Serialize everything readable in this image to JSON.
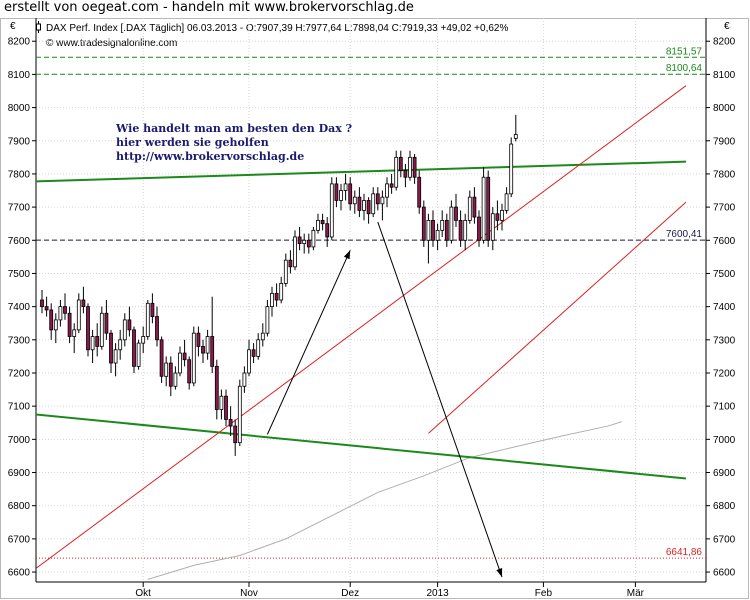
{
  "page_title": "erstellt von oegeat.com - handeln mit www.brokervorschlag.de",
  "header": {
    "info": "DAX Perf. Index [.DAX  Täglich] 06.03.2013 - O:7907,39 H:7977,64 L:7898,04 C:7919,33 +49,02 +0,62%",
    "copyright": "© www.tradesignalonline.com",
    "currency_left": "€",
    "currency_right": "€"
  },
  "annotation": {
    "lines": [
      "Wie handelt man am besten  den Dax ?",
      "hier werden sie geholfen",
      "http://www.brokervorschlag.de"
    ]
  },
  "colors": {
    "bull": "#ffffff",
    "bear": "#8b1a4a",
    "wick": "#000000",
    "green": "#1a8a1a",
    "red": "#dd2222",
    "ma": "#b0b0b0",
    "note": "#1a1a6e"
  },
  "chart_data": {
    "type": "candlestick",
    "instrument": "DAX Perf. Index",
    "ylim": [
      6570,
      8270
    ],
    "yticks": [
      6600,
      6700,
      6800,
      6900,
      7000,
      7100,
      7200,
      7300,
      7400,
      7500,
      7600,
      7700,
      7800,
      7900,
      8000,
      8100,
      8200
    ],
    "x_month_labels": [
      {
        "label": "Okt",
        "index": 22
      },
      {
        "label": "Nov",
        "index": 45
      },
      {
        "label": "Dez",
        "index": 67
      },
      {
        "label": "2013",
        "index": 86
      },
      {
        "label": "Feb",
        "index": 109
      },
      {
        "label": "Mär",
        "index": 129
      }
    ],
    "levels": [
      {
        "value": 8151.57,
        "label": "8151,57",
        "color": "#1a8a1a",
        "style": "dashed"
      },
      {
        "value": 8100.64,
        "label": "8100,64",
        "color": "#1a8a1a",
        "style": "dashed"
      },
      {
        "value": 7600.41,
        "label": "7600,41",
        "color": "#1a1a4a",
        "style": "dashed"
      },
      {
        "value": 6641.86,
        "label": "6641,86",
        "color": "#dd2222",
        "style": "dotted"
      }
    ],
    "trendlines": [
      {
        "color": "#1a8a1a",
        "width": 2,
        "from": [
          -5,
          7776
        ],
        "to": [
          140,
          7837
        ]
      },
      {
        "color": "#1a8a1a",
        "width": 2,
        "from": [
          -5,
          7080
        ],
        "to": [
          140,
          6882
        ]
      },
      {
        "color": "#dd2222",
        "width": 1,
        "from": [
          -5,
          6573
        ],
        "to": [
          140,
          8066
        ]
      },
      {
        "color": "#dd2222",
        "width": 1,
        "from": [
          84,
          7018
        ],
        "to": [
          140,
          7715
        ]
      }
    ],
    "arrows": [
      {
        "from": [
          49,
          7015
        ],
        "to": [
          67,
          7570
        ]
      },
      {
        "from": [
          73,
          7655
        ],
        "to": [
          100,
          6585
        ]
      }
    ],
    "moving_average": [
      [
        23,
        6578
      ],
      [
        33,
        6620
      ],
      [
        43,
        6650
      ],
      [
        53,
        6700
      ],
      [
        63,
        6770
      ],
      [
        73,
        6840
      ],
      [
        83,
        6890
      ],
      [
        93,
        6945
      ],
      [
        103,
        6978
      ],
      [
        113,
        7010
      ],
      [
        123,
        7040
      ],
      [
        126,
        7053
      ]
    ],
    "candles": [
      [
        7420,
        7450,
        7380,
        7400
      ],
      [
        7400,
        7430,
        7370,
        7390
      ],
      [
        7390,
        7410,
        7300,
        7330
      ],
      [
        7330,
        7380,
        7290,
        7360
      ],
      [
        7360,
        7420,
        7340,
        7400
      ],
      [
        7400,
        7440,
        7360,
        7380
      ],
      [
        7380,
        7400,
        7290,
        7310
      ],
      [
        7310,
        7350,
        7260,
        7330
      ],
      [
        7330,
        7440,
        7320,
        7420
      ],
      [
        7420,
        7460,
        7380,
        7400
      ],
      [
        7400,
        7410,
        7250,
        7270
      ],
      [
        7270,
        7330,
        7230,
        7310
      ],
      [
        7310,
        7350,
        7250,
        7280
      ],
      [
        7280,
        7400,
        7270,
        7380
      ],
      [
        7380,
        7420,
        7300,
        7320
      ],
      [
        7320,
        7330,
        7200,
        7230
      ],
      [
        7230,
        7290,
        7190,
        7270
      ],
      [
        7270,
        7330,
        7240,
        7300
      ],
      [
        7300,
        7380,
        7280,
        7360
      ],
      [
        7360,
        7400,
        7310,
        7330
      ],
      [
        7330,
        7340,
        7200,
        7220
      ],
      [
        7220,
        7300,
        7210,
        7290
      ],
      [
        7290,
        7340,
        7260,
        7310
      ],
      [
        7310,
        7420,
        7300,
        7410
      ],
      [
        7410,
        7440,
        7350,
        7370
      ],
      [
        7370,
        7400,
        7280,
        7300
      ],
      [
        7300,
        7310,
        7170,
        7190
      ],
      [
        7190,
        7250,
        7160,
        7230
      ],
      [
        7230,
        7250,
        7130,
        7160
      ],
      [
        7160,
        7220,
        7150,
        7200
      ],
      [
        7200,
        7280,
        7190,
        7260
      ],
      [
        7260,
        7300,
        7220,
        7240
      ],
      [
        7240,
        7250,
        7150,
        7170
      ],
      [
        7170,
        7340,
        7160,
        7320
      ],
      [
        7320,
        7340,
        7250,
        7280
      ],
      [
        7280,
        7300,
        7230,
        7260
      ],
      [
        7260,
        7330,
        7240,
        7310
      ],
      [
        7310,
        7430,
        7200,
        7220
      ],
      [
        7220,
        7240,
        7060,
        7090
      ],
      [
        7090,
        7150,
        7060,
        7130
      ],
      [
        7130,
        7150,
        7040,
        7060
      ],
      [
        7060,
        7100,
        7010,
        7040
      ],
      [
        7040,
        7060,
        6950,
        6990
      ],
      [
        6990,
        7180,
        6980,
        7160
      ],
      [
        7160,
        7220,
        7140,
        7200
      ],
      [
        7200,
        7300,
        7190,
        7270
      ],
      [
        7270,
        7290,
        7230,
        7250
      ],
      [
        7250,
        7320,
        7240,
        7300
      ],
      [
        7300,
        7350,
        7280,
        7320
      ],
      [
        7320,
        7420,
        7310,
        7400
      ],
      [
        7400,
        7460,
        7370,
        7440
      ],
      [
        7440,
        7470,
        7400,
        7420
      ],
      [
        7420,
        7490,
        7410,
        7470
      ],
      [
        7470,
        7560,
        7460,
        7540
      ],
      [
        7540,
        7570,
        7500,
        7520
      ],
      [
        7520,
        7630,
        7510,
        7610
      ],
      [
        7610,
        7640,
        7570,
        7590
      ],
      [
        7590,
        7620,
        7560,
        7600
      ],
      [
        7600,
        7620,
        7560,
        7580
      ],
      [
        7580,
        7640,
        7570,
        7630
      ],
      [
        7630,
        7680,
        7620,
        7660
      ],
      [
        7660,
        7680,
        7630,
        7650
      ],
      [
        7650,
        7670,
        7580,
        7610
      ],
      [
        7610,
        7790,
        7600,
        7770
      ],
      [
        7770,
        7790,
        7700,
        7720
      ],
      [
        7720,
        7770,
        7690,
        7750
      ],
      [
        7750,
        7800,
        7720,
        7770
      ],
      [
        7770,
        7790,
        7690,
        7710
      ],
      [
        7710,
        7750,
        7680,
        7730
      ],
      [
        7730,
        7760,
        7670,
        7690
      ],
      [
        7690,
        7740,
        7660,
        7720
      ],
      [
        7720,
        7730,
        7650,
        7680
      ],
      [
        7680,
        7760,
        7670,
        7740
      ],
      [
        7740,
        7760,
        7690,
        7710
      ],
      [
        7710,
        7750,
        7660,
        7730
      ],
      [
        7730,
        7790,
        7700,
        7770
      ],
      [
        7770,
        7800,
        7740,
        7760
      ],
      [
        7760,
        7870,
        7750,
        7850
      ],
      [
        7850,
        7870,
        7790,
        7810
      ],
      [
        7810,
        7830,
        7760,
        7790
      ],
      [
        7790,
        7870,
        7780,
        7850
      ],
      [
        7850,
        7860,
        7770,
        7790
      ],
      [
        7790,
        7810,
        7680,
        7700
      ],
      [
        7700,
        7720,
        7580,
        7600
      ],
      [
        7600,
        7680,
        7530,
        7660
      ],
      [
        7660,
        7690,
        7580,
        7600
      ],
      [
        7600,
        7650,
        7570,
        7630
      ],
      [
        7630,
        7690,
        7610,
        7660
      ],
      [
        7660,
        7680,
        7580,
        7600
      ],
      [
        7600,
        7720,
        7590,
        7700
      ],
      [
        7700,
        7740,
        7640,
        7660
      ],
      [
        7660,
        7690,
        7580,
        7600
      ],
      [
        7600,
        7680,
        7570,
        7660
      ],
      [
        7660,
        7750,
        7650,
        7730
      ],
      [
        7730,
        7760,
        7650,
        7670
      ],
      [
        7670,
        7690,
        7580,
        7600
      ],
      [
        7600,
        7820,
        7590,
        7790
      ],
      [
        7790,
        7810,
        7580,
        7600
      ],
      [
        7600,
        7700,
        7570,
        7680
      ],
      [
        7680,
        7720,
        7630,
        7660
      ],
      [
        7660,
        7710,
        7630,
        7690
      ],
      [
        7690,
        7760,
        7680,
        7740
      ],
      [
        7740,
        7910,
        7730,
        7890
      ],
      [
        7907,
        7978,
        7898,
        7919
      ]
    ]
  }
}
